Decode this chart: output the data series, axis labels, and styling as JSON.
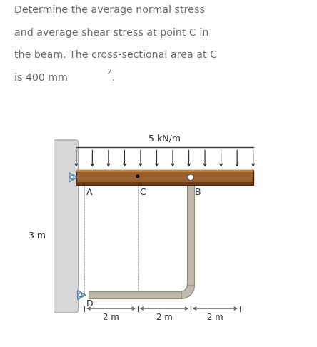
{
  "title_lines": [
    "Determine the average normal stress",
    "and average shear stress at point C in",
    "the beam. The cross-sectional area at C",
    "is 400 mm²."
  ],
  "text_color": "#6b6b6b",
  "wall_color": "#d8d8d8",
  "wall_edge_color": "#aaaaaa",
  "beam_color_face": "#9B6030",
  "beam_top_highlight": "#bf8040",
  "beam_bot_shadow": "#6B3A18",
  "rod_color": "#c0b8a8",
  "rod_edge_color": "#909080",
  "pin_color": "#a8bcd0",
  "pin_edge_color": "#6080a0",
  "arrow_color": "#333333",
  "load_line_color": "#333333",
  "dim_color": "#444444",
  "label_color": "#333333",
  "distributed_load_label": "5 kN/m",
  "label_A": "A",
  "label_B": "B",
  "label_C": "C",
  "label_D": "D",
  "label_3m": "3 m",
  "dim_labels": [
    "2 m",
    "2 m",
    "2 m"
  ],
  "white": "#ffffff",
  "n_load_arrows": 12
}
